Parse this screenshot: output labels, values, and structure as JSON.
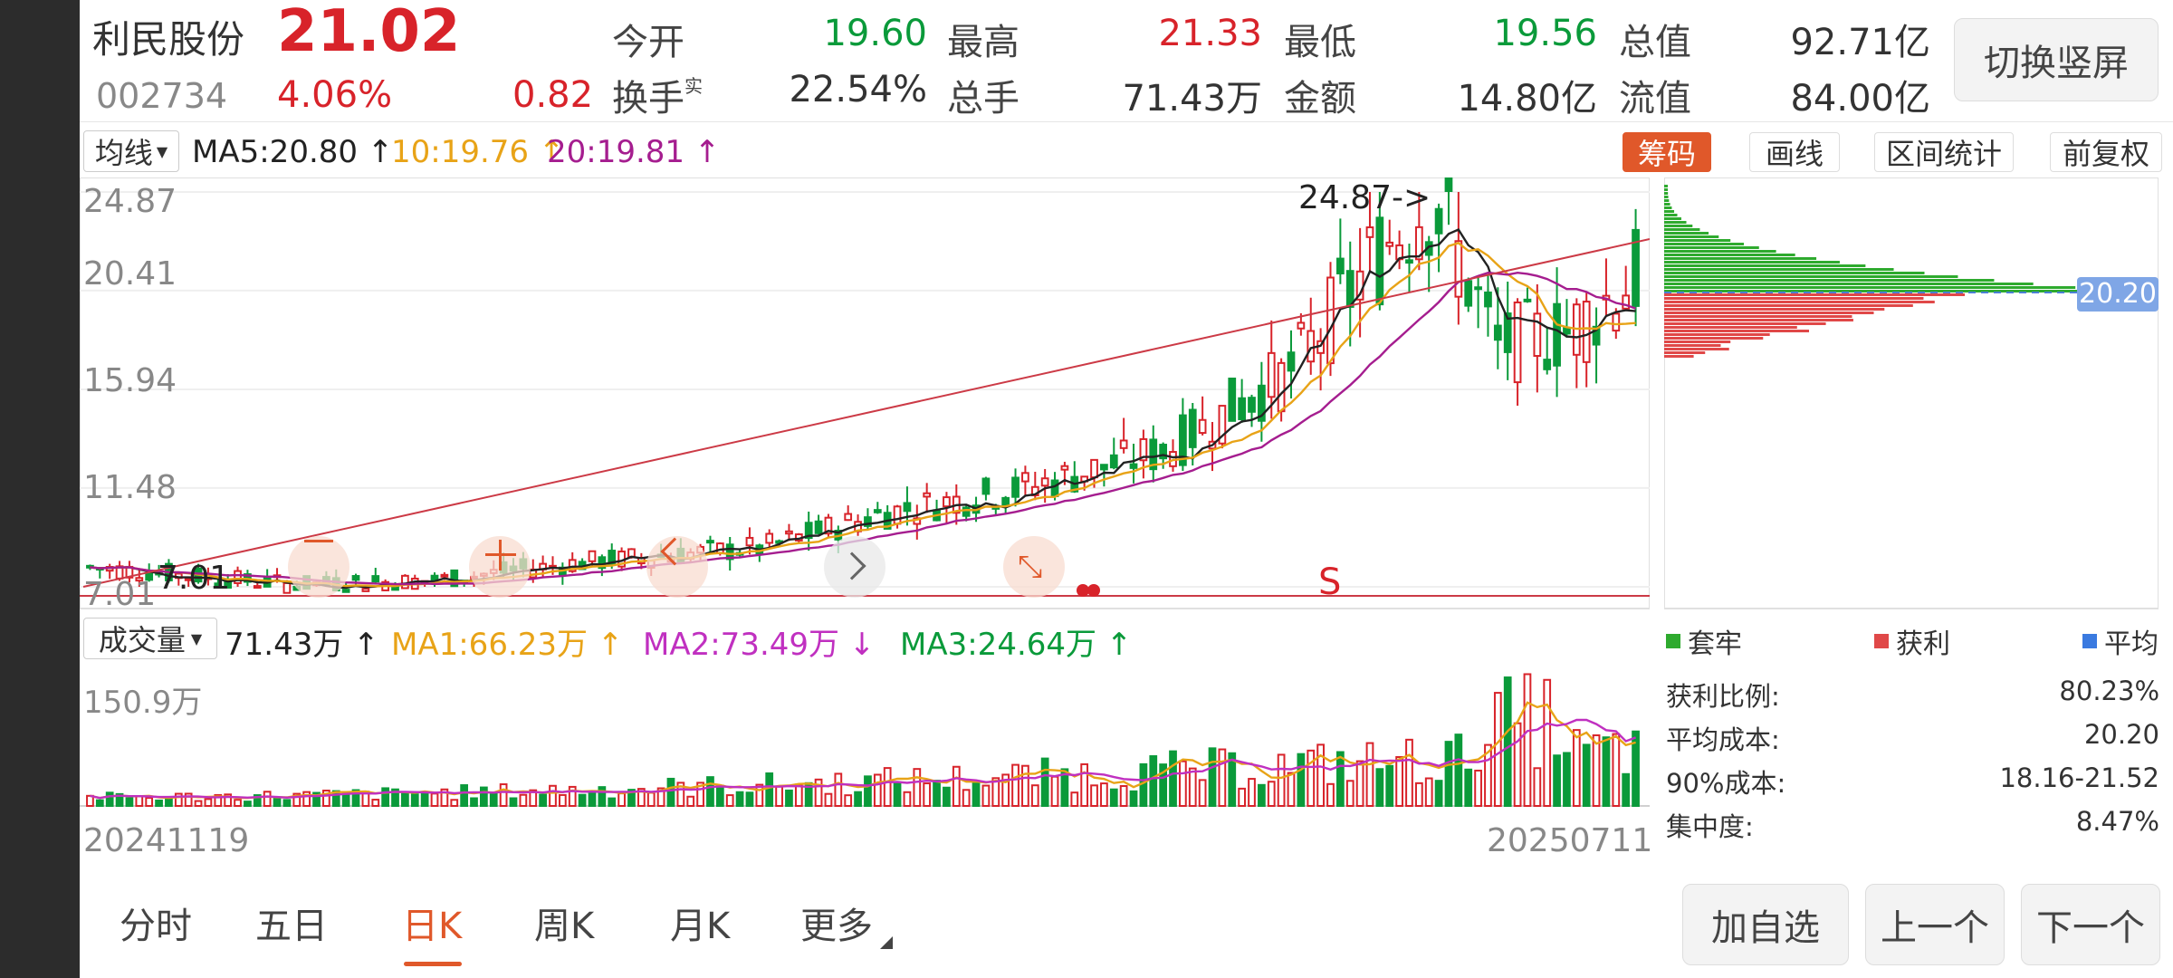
{
  "stock": {
    "name": "利民股份",
    "price": "21.02",
    "code": "002734",
    "change_pct": "4.06%",
    "change": "0.82"
  },
  "quote": {
    "open_label": "今开",
    "open": "19.60",
    "high_label": "最高",
    "high": "21.33",
    "low_label": "最低",
    "low": "19.56",
    "mktcap_label": "总值",
    "mktcap": "92.71亿",
    "turnover_label": "换手",
    "turnover_sup": "实",
    "turnover": "22.54%",
    "vol_label": "总手",
    "vol": "71.43万",
    "amount_label": "金额",
    "amount": "14.80亿",
    "float_label": "流值",
    "float": "84.00亿"
  },
  "toggle_label": "切换竖屏",
  "indicator": {
    "select": "均线",
    "ma5": "MA5:20.80 ↑",
    "ma10": "10:19.76 ↑",
    "ma20": "20:19.81 ↑"
  },
  "tools": {
    "chips": "筹码",
    "draw": "画线",
    "range": "区间统计",
    "adjust": "前复权"
  },
  "price_axis": [
    "24.87",
    "20.41",
    "15.94",
    "11.48",
    "7.01"
  ],
  "annotations": {
    "high_marker": "24.87->",
    "low_marker": "7.01",
    "signal": "S"
  },
  "volume": {
    "select": "成交量",
    "current": "71.43万 ↑",
    "ma1": "MA1:66.23万 ↑",
    "ma2": "MA2:73.49万 ↓",
    "ma3": "MA3:24.64万 ↑",
    "axis_max": "150.9万"
  },
  "dates": {
    "start": "20241119",
    "end": "20250711"
  },
  "chips": {
    "avg_tag": "20.20",
    "legend": {
      "trapped": "套牢",
      "profit": "获利",
      "avg": "平均"
    },
    "stats": [
      {
        "label": "获利比例:",
        "value": "80.23%"
      },
      {
        "label": "平均成本:",
        "value": "20.20"
      },
      {
        "label": "90%成本:",
        "value": "18.16-21.52"
      },
      {
        "label": "集中度:",
        "value": "8.47%"
      }
    ]
  },
  "tabs": [
    "分时",
    "五日",
    "日K",
    "周K",
    "月K",
    "更多"
  ],
  "active_tab": "日K",
  "bottom_buttons": {
    "add": "加自选",
    "prev": "上一个",
    "next": "下一个"
  },
  "overlay_icons": [
    "minus-icon",
    "plus-icon",
    "chevron-left-icon",
    "chevron-right-icon",
    "shrink-icon"
  ],
  "colors": {
    "up": "#d8232a",
    "down": "#0a9a3a",
    "ma5": "#222222",
    "ma10": "#e8a317",
    "ma20": "#a51d8f",
    "active_tab": "#e0582a",
    "chip_tag": "#e0582a"
  },
  "chart_data": {
    "type": "candlestick",
    "x_range": [
      "20241119",
      "20250711"
    ],
    "ylim": [
      7.01,
      24.87
    ],
    "y_ticks": [
      24.87,
      20.41,
      15.94,
      11.48,
      7.01
    ],
    "close_trend": [
      {
        "x": "20241119",
        "y": 7.9
      },
      {
        "x": "20241201",
        "y": 7.6
      },
      {
        "x": "20241220",
        "y": 7.1
      },
      {
        "x": "20250110",
        "y": 7.3
      },
      {
        "x": "20250201",
        "y": 8.1
      },
      {
        "x": "20250301",
        "y": 8.8
      },
      {
        "x": "20250320",
        "y": 10.4
      },
      {
        "x": "20250410",
        "y": 11.5
      },
      {
        "x": "20250501",
        "y": 13.2
      },
      {
        "x": "20250520",
        "y": 16.8
      },
      {
        "x": "20250603",
        "y": 22.5
      },
      {
        "x": "20250610",
        "y": 24.87
      },
      {
        "x": "20250620",
        "y": 17.9
      },
      {
        "x": "20250701",
        "y": 18.6
      },
      {
        "x": "20250711",
        "y": 21.02
      }
    ],
    "max_price": 24.87,
    "volume_max": "150.9万",
    "current_volume": "71.43万"
  }
}
